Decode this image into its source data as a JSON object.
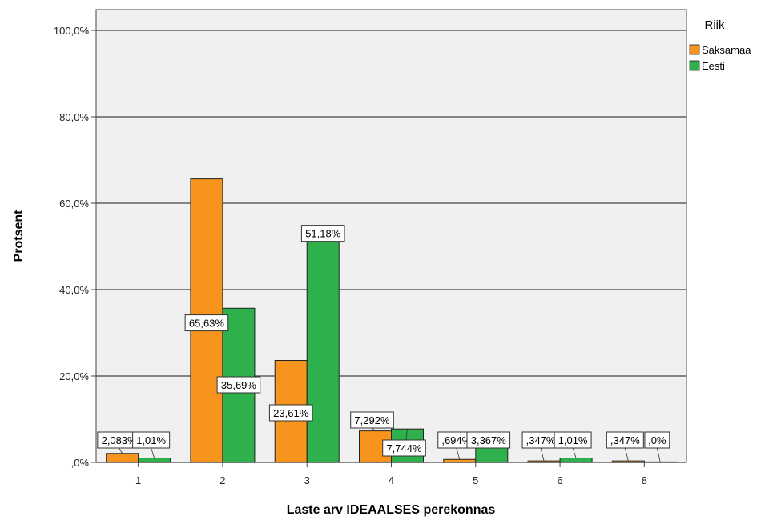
{
  "chart_data": {
    "type": "bar",
    "xlabel": "Laste arv IDEAALSES perekonnas",
    "ylabel": "Protsent",
    "categories": [
      "1",
      "2",
      "3",
      "4",
      "5",
      "6",
      "8"
    ],
    "ylim": [
      0,
      100
    ],
    "yticks": [
      0,
      20,
      40,
      60,
      80,
      100
    ],
    "ytick_labels": [
      ",0%",
      "20,0%",
      "40,0%",
      "60,0%",
      "80,0%",
      "100,0%"
    ],
    "grid": true,
    "legend": {
      "title": "Riik",
      "position": "top-right"
    },
    "series": [
      {
        "name": "Saksamaa",
        "color": "#f7941d",
        "values": [
          2.083,
          65.63,
          23.61,
          7.292,
          0.694,
          0.347,
          0.347
        ],
        "labels": [
          "2,083%",
          "65,63%",
          "23,61%",
          "7,292%",
          ",694%",
          ",347%",
          ",347%"
        ]
      },
      {
        "name": "Eesti",
        "color": "#2eb04c",
        "values": [
          1.01,
          35.69,
          51.18,
          7.744,
          3.367,
          1.01,
          0
        ],
        "labels": [
          "1,01%",
          "35,69%",
          "51,18%",
          "7,744%",
          "3,367%",
          "1,01%",
          ",0%"
        ]
      }
    ]
  }
}
